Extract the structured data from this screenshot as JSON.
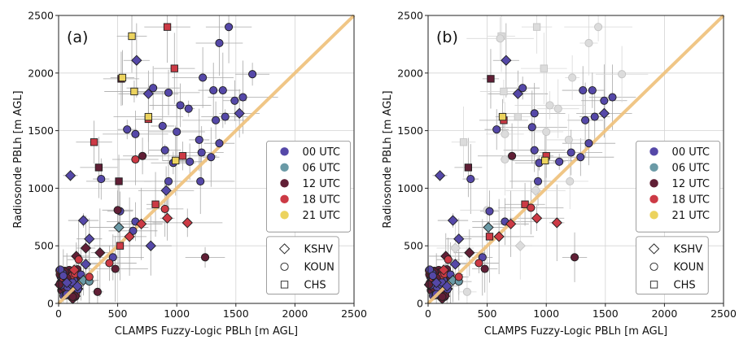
{
  "figure": {
    "panels": [
      "(a)",
      "(b)"
    ],
    "xlabel": "CLAMPS Fuzzy-Logic PBLh [m AGL]",
    "ylabel": "Radiosonde PBLh [m AGL]",
    "xticks": [
      "0",
      "500",
      "1000",
      "1500",
      "2000",
      "2500"
    ],
    "yticks": [
      "0",
      "500",
      "1000",
      "1500",
      "2000",
      "2500"
    ],
    "legend_time": [
      {
        "label": "00 UTC",
        "color": "#5548a8"
      },
      {
        "label": "06 UTC",
        "color": "#6a9aa6"
      },
      {
        "label": "12 UTC",
        "color": "#611f36"
      },
      {
        "label": "18 UTC",
        "color": "#cc3a45"
      },
      {
        "label": "21 UTC",
        "color": "#ecd35e"
      }
    ],
    "legend_site": [
      {
        "label": "KSHV",
        "marker": "diamond"
      },
      {
        "label": "KOUN",
        "marker": "circle"
      },
      {
        "label": "CHS",
        "marker": "square"
      }
    ]
  },
  "chart_data": [
    {
      "type": "scatter",
      "panel": "(a)",
      "xlim": [
        0,
        2500
      ],
      "ylim": [
        0,
        2500
      ],
      "grid": true,
      "one_to_one_line": {
        "color": "#f0c480"
      },
      "legend_placement": "right",
      "points": [
        {
          "x": 100,
          "y": 1110,
          "site": "KSHV",
          "time": "00 UTC"
        },
        {
          "x": 210,
          "y": 720,
          "site": "KSHV",
          "time": "00 UTC"
        },
        {
          "x": 260,
          "y": 560,
          "site": "KSHV",
          "time": "00 UTC"
        },
        {
          "x": 230,
          "y": 340,
          "site": "KSHV",
          "time": "00 UTC"
        },
        {
          "x": 660,
          "y": 2110,
          "site": "KSHV",
          "time": "00 UTC"
        },
        {
          "x": 760,
          "y": 1820,
          "site": "KSHV",
          "time": "00 UTC"
        },
        {
          "x": 910,
          "y": 980,
          "site": "KSHV",
          "time": "00 UTC"
        },
        {
          "x": 1530,
          "y": 1650,
          "site": "KSHV",
          "time": "00 UTC"
        },
        {
          "x": 780,
          "y": 500,
          "site": "KSHV",
          "time": "00 UTC"
        },
        {
          "x": 70,
          "y": 180,
          "site": "KSHV",
          "time": "00 UTC"
        },
        {
          "x": 160,
          "y": 150,
          "site": "KSHV",
          "time": "00 UTC"
        },
        {
          "x": 1440,
          "y": 2400,
          "site": "KOUN",
          "time": "00 UTC"
        },
        {
          "x": 1360,
          "y": 2260,
          "site": "KOUN",
          "time": "00 UTC"
        },
        {
          "x": 1640,
          "y": 1990,
          "site": "KOUN",
          "time": "00 UTC"
        },
        {
          "x": 1220,
          "y": 1960,
          "site": "KOUN",
          "time": "00 UTC"
        },
        {
          "x": 1310,
          "y": 1850,
          "site": "KOUN",
          "time": "00 UTC"
        },
        {
          "x": 1390,
          "y": 1850,
          "site": "KOUN",
          "time": "00 UTC"
        },
        {
          "x": 1490,
          "y": 1760,
          "site": "KOUN",
          "time": "00 UTC"
        },
        {
          "x": 1560,
          "y": 1790,
          "site": "KOUN",
          "time": "00 UTC"
        },
        {
          "x": 800,
          "y": 1870,
          "site": "KOUN",
          "time": "00 UTC"
        },
        {
          "x": 930,
          "y": 1830,
          "site": "KOUN",
          "time": "00 UTC"
        },
        {
          "x": 1030,
          "y": 1720,
          "site": "KOUN",
          "time": "00 UTC"
        },
        {
          "x": 1100,
          "y": 1690,
          "site": "KOUN",
          "time": "00 UTC"
        },
        {
          "x": 1410,
          "y": 1620,
          "site": "KOUN",
          "time": "00 UTC"
        },
        {
          "x": 1330,
          "y": 1590,
          "site": "KOUN",
          "time": "00 UTC"
        },
        {
          "x": 880,
          "y": 1540,
          "site": "KOUN",
          "time": "00 UTC"
        },
        {
          "x": 1000,
          "y": 1490,
          "site": "KOUN",
          "time": "00 UTC"
        },
        {
          "x": 580,
          "y": 1510,
          "site": "KOUN",
          "time": "00 UTC"
        },
        {
          "x": 650,
          "y": 1470,
          "site": "KOUN",
          "time": "00 UTC"
        },
        {
          "x": 1190,
          "y": 1420,
          "site": "KOUN",
          "time": "00 UTC"
        },
        {
          "x": 1360,
          "y": 1390,
          "site": "KOUN",
          "time": "00 UTC"
        },
        {
          "x": 1210,
          "y": 1310,
          "site": "KOUN",
          "time": "00 UTC"
        },
        {
          "x": 900,
          "y": 1330,
          "site": "KOUN",
          "time": "00 UTC"
        },
        {
          "x": 1110,
          "y": 1230,
          "site": "KOUN",
          "time": "00 UTC"
        },
        {
          "x": 970,
          "y": 1220,
          "site": "KOUN",
          "time": "00 UTC"
        },
        {
          "x": 1290,
          "y": 1270,
          "site": "KOUN",
          "time": "00 UTC"
        },
        {
          "x": 930,
          "y": 1060,
          "site": "KOUN",
          "time": "00 UTC"
        },
        {
          "x": 1200,
          "y": 1060,
          "site": "KOUN",
          "time": "00 UTC"
        },
        {
          "x": 360,
          "y": 1080,
          "site": "KOUN",
          "time": "00 UTC"
        },
        {
          "x": 520,
          "y": 800,
          "site": "KOUN",
          "time": "00 UTC"
        },
        {
          "x": 650,
          "y": 710,
          "site": "KOUN",
          "time": "00 UTC"
        },
        {
          "x": 460,
          "y": 400,
          "site": "KOUN",
          "time": "00 UTC"
        },
        {
          "x": 630,
          "y": 630,
          "site": "KOUN",
          "time": "00 UTC"
        },
        {
          "x": 40,
          "y": 240,
          "site": "KOUN",
          "time": "00 UTC"
        },
        {
          "x": 190,
          "y": 250,
          "site": "KOUN",
          "time": "00 UTC"
        },
        {
          "x": 510,
          "y": 660,
          "site": "KSHV",
          "time": "06 UTC"
        },
        {
          "x": 210,
          "y": 200,
          "site": "KSHV",
          "time": "06 UTC"
        },
        {
          "x": 260,
          "y": 190,
          "site": "KOUN",
          "time": "06 UTC"
        },
        {
          "x": 530,
          "y": 1950,
          "site": "CHS",
          "time": "12 UTC"
        },
        {
          "x": 340,
          "y": 1180,
          "site": "CHS",
          "time": "12 UTC"
        },
        {
          "x": 510,
          "y": 1060,
          "site": "CHS",
          "time": "12 UTC"
        },
        {
          "x": 710,
          "y": 1280,
          "site": "KOUN",
          "time": "12 UTC"
        },
        {
          "x": 500,
          "y": 810,
          "site": "KOUN",
          "time": "12 UTC"
        },
        {
          "x": 1240,
          "y": 400,
          "site": "KOUN",
          "time": "12 UTC"
        },
        {
          "x": 330,
          "y": 100,
          "site": "KOUN",
          "time": "12 UTC"
        },
        {
          "x": 480,
          "y": 300,
          "site": "KOUN",
          "time": "12 UTC"
        },
        {
          "x": 350,
          "y": 440,
          "site": "KSHV",
          "time": "12 UTC"
        },
        {
          "x": 230,
          "y": 480,
          "site": "KSHV",
          "time": "12 UTC"
        },
        {
          "x": 150,
          "y": 410,
          "site": "KSHV",
          "time": "12 UTC"
        },
        {
          "x": 920,
          "y": 2400,
          "site": "CHS",
          "time": "18 UTC"
        },
        {
          "x": 980,
          "y": 2040,
          "site": "CHS",
          "time": "18 UTC"
        },
        {
          "x": 760,
          "y": 1600,
          "site": "CHS",
          "time": "18 UTC"
        },
        {
          "x": 300,
          "y": 1400,
          "site": "CHS",
          "time": "18 UTC"
        },
        {
          "x": 1050,
          "y": 1280,
          "site": "CHS",
          "time": "18 UTC"
        },
        {
          "x": 820,
          "y": 860,
          "site": "CHS",
          "time": "18 UTC"
        },
        {
          "x": 520,
          "y": 500,
          "site": "CHS",
          "time": "18 UTC"
        },
        {
          "x": 920,
          "y": 740,
          "site": "KSHV",
          "time": "18 UTC"
        },
        {
          "x": 1090,
          "y": 700,
          "site": "KSHV",
          "time": "18 UTC"
        },
        {
          "x": 700,
          "y": 690,
          "site": "KSHV",
          "time": "18 UTC"
        },
        {
          "x": 600,
          "y": 580,
          "site": "KSHV",
          "time": "18 UTC"
        },
        {
          "x": 650,
          "y": 1250,
          "site": "KOUN",
          "time": "18 UTC"
        },
        {
          "x": 900,
          "y": 820,
          "site": "KOUN",
          "time": "18 UTC"
        },
        {
          "x": 170,
          "y": 380,
          "site": "KOUN",
          "time": "18 UTC"
        },
        {
          "x": 260,
          "y": 230,
          "site": "KOUN",
          "time": "18 UTC"
        },
        {
          "x": 430,
          "y": 350,
          "site": "KOUN",
          "time": "18 UTC"
        },
        {
          "x": 620,
          "y": 2320,
          "site": "CHS",
          "time": "21 UTC"
        },
        {
          "x": 540,
          "y": 1960,
          "site": "CHS",
          "time": "21 UTC"
        },
        {
          "x": 640,
          "y": 1840,
          "site": "CHS",
          "time": "21 UTC"
        },
        {
          "x": 760,
          "y": 1620,
          "site": "CHS",
          "time": "21 UTC"
        },
        {
          "x": 990,
          "y": 1240,
          "site": "CHS",
          "time": "21 UTC"
        }
      ]
    },
    {
      "type": "scatter",
      "panel": "(b)",
      "xlim": [
        0,
        2500
      ],
      "ylim": [
        0,
        2500
      ],
      "grid": true,
      "one_to_one_line": {
        "color": "#f0c480"
      },
      "legend_placement": "right",
      "points": [
        {
          "x": 100,
          "y": 1110,
          "site": "KSHV",
          "time": "00 UTC"
        },
        {
          "x": 210,
          "y": 720,
          "site": "KSHV",
          "time": "00 UTC"
        },
        {
          "x": 260,
          "y": 560,
          "site": "KSHV",
          "time": "00 UTC"
        },
        {
          "x": 230,
          "y": 340,
          "site": "KSHV",
          "time": "00 UTC"
        },
        {
          "x": 660,
          "y": 2110,
          "site": "KSHV",
          "time": "00 UTC"
        },
        {
          "x": 760,
          "y": 1820,
          "site": "KSHV",
          "time": "00 UTC"
        },
        {
          "x": 1490,
          "y": 1650,
          "site": "KSHV",
          "time": "00 UTC"
        },
        {
          "x": 70,
          "y": 180,
          "site": "KSHV",
          "time": "00 UTC"
        },
        {
          "x": 160,
          "y": 150,
          "site": "KSHV",
          "time": "00 UTC"
        },
        {
          "x": 1310,
          "y": 1850,
          "site": "KOUN",
          "time": "00 UTC"
        },
        {
          "x": 1390,
          "y": 1850,
          "site": "KOUN",
          "time": "00 UTC"
        },
        {
          "x": 1490,
          "y": 1760,
          "site": "KOUN",
          "time": "00 UTC"
        },
        {
          "x": 1560,
          "y": 1790,
          "site": "KOUN",
          "time": "00 UTC"
        },
        {
          "x": 800,
          "y": 1870,
          "site": "KOUN",
          "time": "00 UTC"
        },
        {
          "x": 900,
          "y": 1650,
          "site": "KOUN",
          "time": "00 UTC"
        },
        {
          "x": 1410,
          "y": 1620,
          "site": "KOUN",
          "time": "00 UTC"
        },
        {
          "x": 1330,
          "y": 1590,
          "site": "KOUN",
          "time": "00 UTC"
        },
        {
          "x": 580,
          "y": 1510,
          "site": "KOUN",
          "time": "00 UTC"
        },
        {
          "x": 880,
          "y": 1530,
          "site": "KOUN",
          "time": "00 UTC"
        },
        {
          "x": 1360,
          "y": 1390,
          "site": "KOUN",
          "time": "00 UTC"
        },
        {
          "x": 1210,
          "y": 1310,
          "site": "KOUN",
          "time": "00 UTC"
        },
        {
          "x": 900,
          "y": 1330,
          "site": "KOUN",
          "time": "00 UTC"
        },
        {
          "x": 1110,
          "y": 1230,
          "site": "KOUN",
          "time": "00 UTC"
        },
        {
          "x": 940,
          "y": 1220,
          "site": "KOUN",
          "time": "00 UTC"
        },
        {
          "x": 1290,
          "y": 1270,
          "site": "KOUN",
          "time": "00 UTC"
        },
        {
          "x": 360,
          "y": 1080,
          "site": "KOUN",
          "time": "00 UTC"
        },
        {
          "x": 930,
          "y": 1060,
          "site": "KOUN",
          "time": "00 UTC"
        },
        {
          "x": 520,
          "y": 800,
          "site": "KOUN",
          "time": "00 UTC"
        },
        {
          "x": 650,
          "y": 710,
          "site": "KOUN",
          "time": "00 UTC"
        },
        {
          "x": 460,
          "y": 400,
          "site": "KOUN",
          "time": "00 UTC"
        },
        {
          "x": 40,
          "y": 240,
          "site": "KOUN",
          "time": "00 UTC"
        },
        {
          "x": 190,
          "y": 250,
          "site": "KOUN",
          "time": "00 UTC"
        },
        {
          "x": 510,
          "y": 660,
          "site": "KSHV",
          "time": "06 UTC"
        },
        {
          "x": 210,
          "y": 200,
          "site": "KSHV",
          "time": "06 UTC"
        },
        {
          "x": 260,
          "y": 190,
          "site": "KOUN",
          "time": "06 UTC"
        },
        {
          "x": 530,
          "y": 1950,
          "site": "CHS",
          "time": "12 UTC"
        },
        {
          "x": 340,
          "y": 1180,
          "site": "CHS",
          "time": "12 UTC"
        },
        {
          "x": 710,
          "y": 1280,
          "site": "KOUN",
          "time": "12 UTC"
        },
        {
          "x": 1240,
          "y": 400,
          "site": "KOUN",
          "time": "12 UTC"
        },
        {
          "x": 480,
          "y": 300,
          "site": "KOUN",
          "time": "12 UTC"
        },
        {
          "x": 350,
          "y": 440,
          "site": "KSHV",
          "time": "12 UTC"
        },
        {
          "x": 150,
          "y": 410,
          "site": "KSHV",
          "time": "12 UTC"
        },
        {
          "x": 640,
          "y": 1590,
          "site": "CHS",
          "time": "18 UTC"
        },
        {
          "x": 1000,
          "y": 1280,
          "site": "CHS",
          "time": "18 UTC"
        },
        {
          "x": 820,
          "y": 860,
          "site": "CHS",
          "time": "18 UTC"
        },
        {
          "x": 520,
          "y": 580,
          "site": "CHS",
          "time": "18 UTC"
        },
        {
          "x": 920,
          "y": 740,
          "site": "KSHV",
          "time": "18 UTC"
        },
        {
          "x": 1090,
          "y": 700,
          "site": "KSHV",
          "time": "18 UTC"
        },
        {
          "x": 700,
          "y": 690,
          "site": "KSHV",
          "time": "18 UTC"
        },
        {
          "x": 600,
          "y": 580,
          "site": "KSHV",
          "time": "18 UTC"
        },
        {
          "x": 870,
          "y": 830,
          "site": "KOUN",
          "time": "18 UTC"
        },
        {
          "x": 170,
          "y": 380,
          "site": "KOUN",
          "time": "18 UTC"
        },
        {
          "x": 260,
          "y": 230,
          "site": "KOUN",
          "time": "18 UTC"
        },
        {
          "x": 430,
          "y": 350,
          "site": "KOUN",
          "time": "18 UTC"
        },
        {
          "x": 630,
          "y": 1620,
          "site": "CHS",
          "time": "21 UTC"
        },
        {
          "x": 990,
          "y": 1240,
          "site": "CHS",
          "time": "21 UTC"
        }
      ],
      "excluded_points": [
        {
          "x": 620,
          "y": 2320,
          "site": "CHS"
        },
        {
          "x": 920,
          "y": 2400,
          "site": "CHS"
        },
        {
          "x": 640,
          "y": 1840,
          "site": "CHS"
        },
        {
          "x": 980,
          "y": 2040,
          "site": "CHS"
        },
        {
          "x": 300,
          "y": 1400,
          "site": "CHS"
        },
        {
          "x": 760,
          "y": 1620,
          "site": "CHS"
        },
        {
          "x": 610,
          "y": 2300,
          "site": "KOUN"
        },
        {
          "x": 1440,
          "y": 2400,
          "site": "KOUN"
        },
        {
          "x": 1360,
          "y": 2260,
          "site": "KOUN"
        },
        {
          "x": 1640,
          "y": 1990,
          "site": "KOUN"
        },
        {
          "x": 1220,
          "y": 1960,
          "site": "KOUN"
        },
        {
          "x": 1030,
          "y": 1720,
          "site": "KOUN"
        },
        {
          "x": 1100,
          "y": 1690,
          "site": "KOUN"
        },
        {
          "x": 1000,
          "y": 1490,
          "site": "KOUN"
        },
        {
          "x": 1190,
          "y": 1420,
          "site": "KOUN"
        },
        {
          "x": 1200,
          "y": 1060,
          "site": "KOUN"
        },
        {
          "x": 650,
          "y": 1470,
          "site": "KOUN"
        },
        {
          "x": 650,
          "y": 1250,
          "site": "KOUN"
        },
        {
          "x": 500,
          "y": 810,
          "site": "KOUN"
        },
        {
          "x": 330,
          "y": 100,
          "site": "KOUN"
        },
        {
          "x": 780,
          "y": 500,
          "site": "KSHV"
        },
        {
          "x": 910,
          "y": 980,
          "site": "KSHV"
        },
        {
          "x": 230,
          "y": 480,
          "site": "KSHV"
        }
      ]
    }
  ]
}
